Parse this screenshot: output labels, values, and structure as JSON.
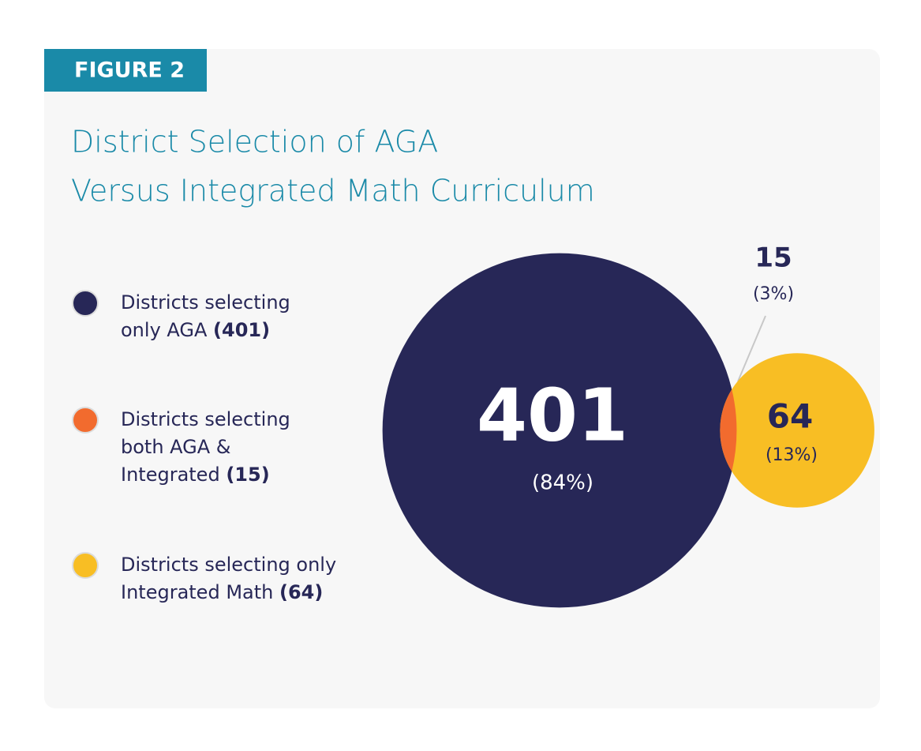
{
  "figure_label": "FIGURE 2",
  "chart_data": {
    "type": "venn",
    "title": [
      "District Selection of AGA",
      "Versus Integrated Math Curriculum"
    ],
    "segments": [
      {
        "name": [
          "Districts selecting",
          "only AGA"
        ],
        "count_label": "(401)",
        "value": 401,
        "percent_label": "(84%)",
        "color": "#272757"
      },
      {
        "name": [
          "Districts selecting",
          "both AGA &",
          "Integrated"
        ],
        "count_label": "(15)",
        "value": 15,
        "percent_label": "(3%)",
        "color": "#f26b2e"
      },
      {
        "name": [
          "Districts selecting only",
          "Integrated Math"
        ],
        "count_label": "(64)",
        "value": 64,
        "percent_label": "(13%)",
        "color": "#f8be24"
      }
    ]
  }
}
